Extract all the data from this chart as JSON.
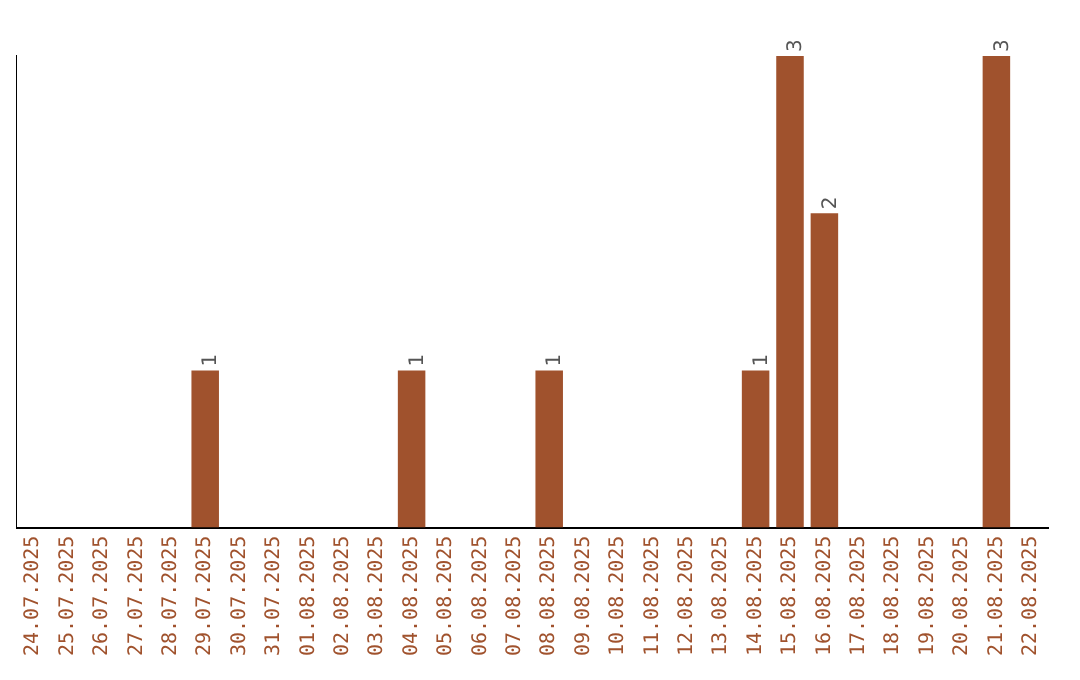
{
  "chart_data": {
    "type": "bar",
    "categories": [
      "24.07.2025",
      "25.07.2025",
      "26.07.2025",
      "27.07.2025",
      "28.07.2025",
      "29.07.2025",
      "30.07.2025",
      "31.07.2025",
      "01.08.2025",
      "02.08.2025",
      "03.08.2025",
      "04.08.2025",
      "05.08.2025",
      "06.08.2025",
      "07.08.2025",
      "08.08.2025",
      "09.08.2025",
      "10.08.2025",
      "11.08.2025",
      "12.08.2025",
      "13.08.2025",
      "14.08.2025",
      "15.08.2025",
      "16.08.2025",
      "17.08.2025",
      "18.08.2025",
      "19.08.2025",
      "20.08.2025",
      "21.08.2025",
      "22.08.2025"
    ],
    "values": [
      0,
      0,
      0,
      0,
      0,
      1,
      0,
      0,
      0,
      0,
      0,
      1,
      0,
      0,
      0,
      1,
      0,
      0,
      0,
      0,
      0,
      1,
      3,
      2,
      0,
      0,
      0,
      0,
      3,
      0
    ],
    "value_labels": [
      null,
      null,
      null,
      null,
      null,
      "1",
      null,
      null,
      null,
      null,
      null,
      "1",
      null,
      null,
      null,
      "1",
      null,
      null,
      null,
      null,
      null,
      "1",
      "3",
      "2",
      null,
      null,
      null,
      null,
      "3",
      null
    ],
    "color": "#a0522d",
    "grid": false,
    "legend": false,
    "tick_labels": "x"
  }
}
